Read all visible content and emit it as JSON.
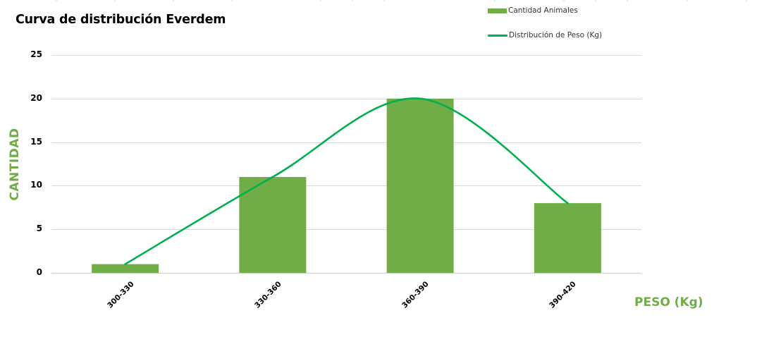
{
  "chart": {
    "title": "Curva de distribución Everdem",
    "y_axis_title": "CANTIDAD",
    "x_axis_title": "PESO (Kg)",
    "legend": [
      {
        "label": "Cantidad Animales",
        "type": "bar",
        "color": "#70AD47"
      },
      {
        "label": "Distribución de Peso (Kg)",
        "type": "line",
        "color": "#00B050"
      }
    ],
    "y_ticks": [
      "0",
      "5",
      "10",
      "15",
      "20",
      "25"
    ],
    "x_ticks": [
      "300-330",
      "330-360",
      "360-390",
      "390-420"
    ]
  },
  "colors": {
    "bar": "#70AD47",
    "line": "#00B050",
    "axis_title": "#70AD47",
    "gridline": "#D9D9D9"
  },
  "chart_data": {
    "type": "bar",
    "title": "Curva de distribución Everdem",
    "xlabel": "PESO (Kg)",
    "ylabel": "CANTIDAD",
    "categories": [
      "300-330",
      "330-360",
      "360-390",
      "390-420"
    ],
    "series": [
      {
        "name": "Cantidad Animales",
        "type": "bar",
        "color": "#70AD47",
        "values": [
          1,
          11,
          20,
          8
        ]
      },
      {
        "name": "Distribución de Peso (Kg)",
        "type": "line",
        "smooth": true,
        "color": "#00B050",
        "values": [
          1,
          11,
          20,
          8
        ]
      }
    ],
    "ylim": [
      0,
      25
    ],
    "yticks": [
      0,
      5,
      10,
      15,
      20,
      25
    ],
    "grid": true,
    "legend_position": "top-right"
  }
}
